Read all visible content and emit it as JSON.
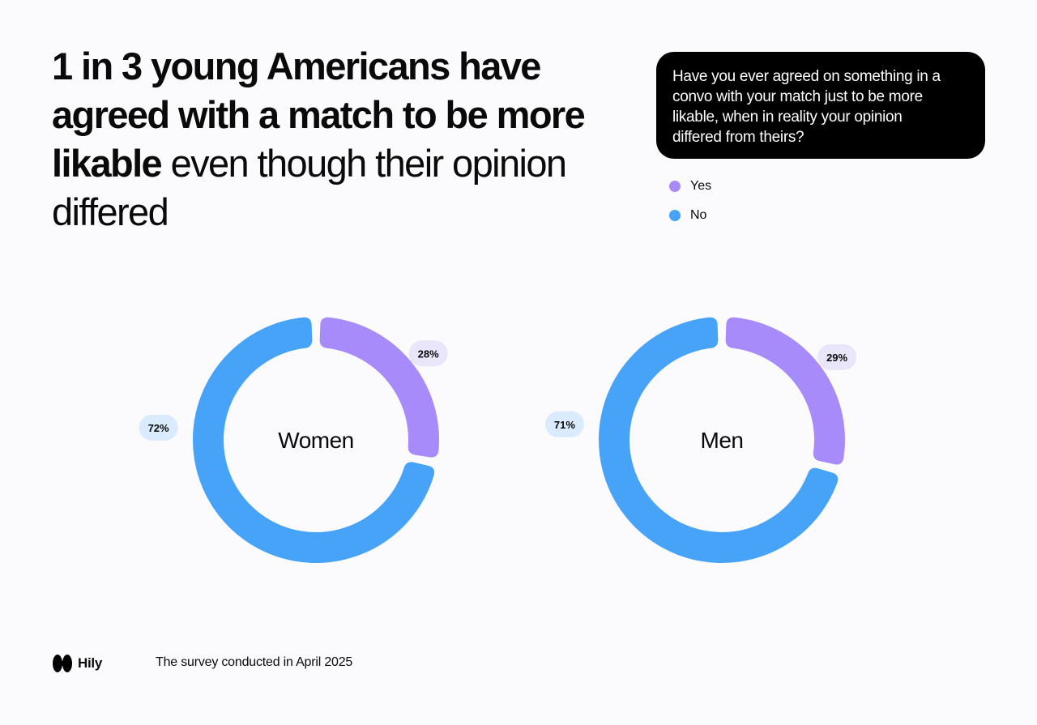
{
  "headline": {
    "bold_line": "1 in 3 young Americans have agreed with a match to be more likable",
    "regular_line": " even though their opinion differed"
  },
  "question": "Have you ever agreed on something in a convo with your match just to be more likable, when in reality your opinion differed from theirs?",
  "legend": [
    {
      "label": "Yes",
      "color": "#a78bfa"
    },
    {
      "label": "No",
      "color": "#47a3f8"
    }
  ],
  "chart_data": [
    {
      "type": "pie",
      "center_label": "Women",
      "categories": [
        "Yes",
        "No"
      ],
      "values": [
        28,
        72
      ],
      "labels": [
        "28%",
        "72%"
      ],
      "colors": [
        "#a78bfa",
        "#47a3f8"
      ]
    },
    {
      "type": "pie",
      "center_label": "Men",
      "categories": [
        "Yes",
        "No"
      ],
      "values": [
        29,
        71
      ],
      "labels": [
        "29%",
        "71%"
      ],
      "colors": [
        "#a78bfa",
        "#47a3f8"
      ]
    }
  ],
  "footer": {
    "brand": "Hily",
    "note": "The survey conducted in April 2025"
  }
}
